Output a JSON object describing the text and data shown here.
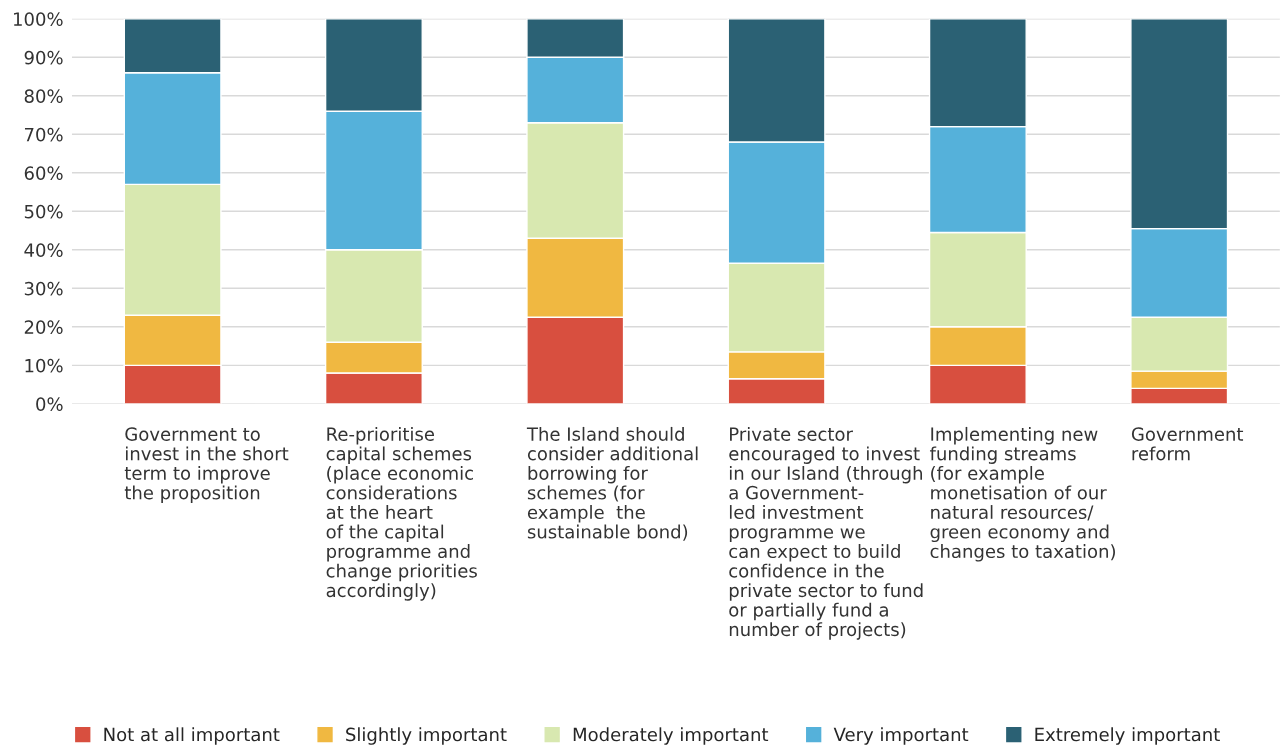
{
  "chart_data": {
    "type": "bar",
    "stacked": true,
    "categories": [
      "Government to\ninvest in the short\nterm to improve\nthe proposition",
      "Re-prioritise\ncapital schemes\n(place economic\nconsiderations\nat the heart\nof the capital\nprogramme and\nchange priorities\naccordingly)",
      "The Island should\nconsider additional\nborrowing for\nschemes (for\nexample  the\nsustainable bond)",
      "Private sector\nencouraged to invest\nin our Island (through\na Government-\nled investment\nprogramme we\ncan expect to build\nconfidence in the\nprivate sector to fund\nor partially fund a\nnumber of projects)",
      "Implementing new\nfunding streams\n(for example\nmonetisation of our\nnatural resources/\ngreen economy and\nchanges to taxation)",
      "Government\nreform"
    ],
    "series": [
      {
        "name": "Not at all important",
        "color": "#d84f3f",
        "values": [
          10,
          8,
          22.5,
          6.5,
          10,
          4
        ]
      },
      {
        "name": "Slightly important",
        "color": "#f0b841",
        "values": [
          13,
          8,
          20.5,
          7,
          10,
          4.5
        ]
      },
      {
        "name": "Moderately important",
        "color": "#d8e8b0",
        "values": [
          34,
          24,
          30,
          23,
          24.5,
          14
        ]
      },
      {
        "name": "Very important",
        "color": "#55b1da",
        "values": [
          29,
          36,
          17,
          31.5,
          27.5,
          23
        ]
      },
      {
        "name": "Extremely important",
        "color": "#2b6174",
        "values": [
          14,
          24,
          10,
          32,
          28,
          54.5
        ]
      }
    ],
    "ylim": [
      0,
      100
    ],
    "yticks": [
      {
        "value": 0,
        "label": "0%"
      },
      {
        "value": 10,
        "label": "10%"
      },
      {
        "value": 20,
        "label": "20%"
      },
      {
        "value": 30,
        "label": "30%"
      },
      {
        "value": 40,
        "label": "40%"
      },
      {
        "value": 50,
        "label": "50%"
      },
      {
        "value": 60,
        "label": "60%"
      },
      {
        "value": 70,
        "label": "70%"
      },
      {
        "value": 80,
        "label": "80%"
      },
      {
        "value": 90,
        "label": "90%"
      },
      {
        "value": 100,
        "label": "100%"
      }
    ],
    "grid": "y",
    "legend": "bottom"
  }
}
